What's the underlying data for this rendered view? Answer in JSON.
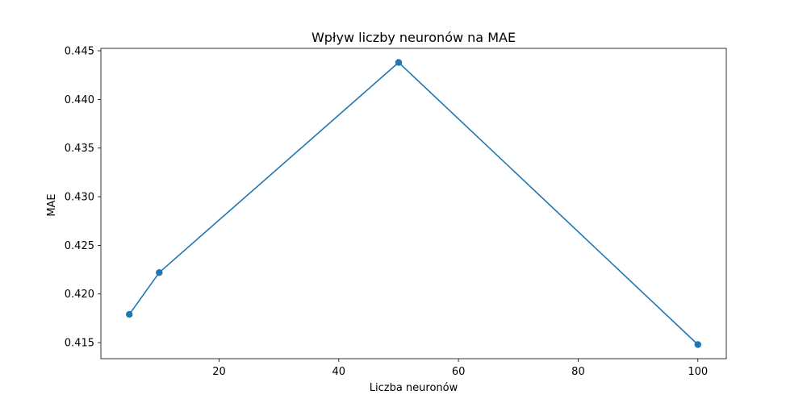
{
  "chart_data": {
    "type": "line",
    "title": "Wpływ liczby neuronów na MAE",
    "xlabel": "Liczba neuronów",
    "ylabel": "MAE",
    "x": [
      5,
      10,
      50,
      100
    ],
    "series": [
      {
        "values": [
          0.4179,
          0.4222,
          0.4438,
          0.4148
        ],
        "color": "#1f77b4",
        "marker": "circle"
      }
    ],
    "xlim": [
      0.25,
      104.75
    ],
    "ylim": [
      0.41335,
      0.44525
    ],
    "xticks": [
      20,
      40,
      60,
      80,
      100
    ],
    "xtick_labels": [
      "20",
      "40",
      "60",
      "80",
      "100"
    ],
    "yticks": [
      0.415,
      0.42,
      0.425,
      0.43,
      0.435,
      0.44,
      0.445
    ],
    "ytick_labels": [
      "0.415",
      "0.420",
      "0.425",
      "0.430",
      "0.435",
      "0.440",
      "0.445"
    ],
    "grid": false,
    "legend": false
  }
}
